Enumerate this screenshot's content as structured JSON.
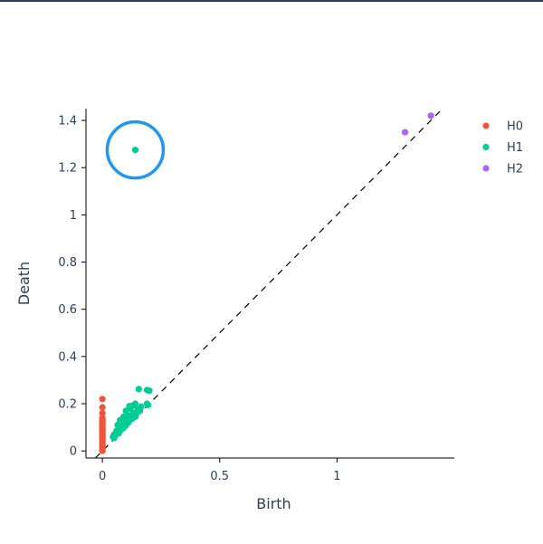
{
  "chart_data": {
    "type": "scatter",
    "xlabel": "Birth",
    "ylabel": "Death",
    "xlim": [
      -0.07,
      1.5
    ],
    "ylim": [
      -0.03,
      1.45
    ],
    "x_ticks": [
      {
        "value": 0,
        "label": "0"
      },
      {
        "value": 0.5,
        "label": "0.5"
      },
      {
        "value": 1,
        "label": "1"
      }
    ],
    "y_ticks": [
      {
        "value": 0,
        "label": "0"
      },
      {
        "value": 0.2,
        "label": "0.2"
      },
      {
        "value": 0.4,
        "label": "0.4"
      },
      {
        "value": 0.6,
        "label": "0.6"
      },
      {
        "value": 0.8,
        "label": "0.8"
      },
      {
        "value": 1,
        "label": "1"
      },
      {
        "value": 1.2,
        "label": "1.2"
      },
      {
        "value": 1.4,
        "label": "1.4"
      }
    ],
    "diagonal": {
      "style": "dashed",
      "color": "#000000",
      "from": [
        -0.03,
        -0.03
      ],
      "to": [
        1.45,
        1.45
      ]
    },
    "legend": {
      "placement": "top-right"
    },
    "highlight": {
      "label": "",
      "x": 0.14,
      "y": 1.275,
      "color": "#2196f3"
    },
    "series": [
      {
        "name": "H0",
        "color": "#ef553b",
        "points": [
          [
            0,
            0.0
          ],
          [
            0,
            0.005
          ],
          [
            0,
            0.01
          ],
          [
            0,
            0.015
          ],
          [
            0,
            0.02
          ],
          [
            0,
            0.025
          ],
          [
            0,
            0.03
          ],
          [
            0,
            0.035
          ],
          [
            0,
            0.04
          ],
          [
            0,
            0.045
          ],
          [
            0,
            0.05
          ],
          [
            0,
            0.055
          ],
          [
            0,
            0.06
          ],
          [
            0,
            0.065
          ],
          [
            0,
            0.07
          ],
          [
            0,
            0.075
          ],
          [
            0,
            0.08
          ],
          [
            0,
            0.085
          ],
          [
            0,
            0.09
          ],
          [
            0,
            0.095
          ],
          [
            0,
            0.1
          ],
          [
            0,
            0.105
          ],
          [
            0,
            0.11
          ],
          [
            0,
            0.115
          ],
          [
            0,
            0.12
          ],
          [
            0,
            0.125
          ],
          [
            0,
            0.13
          ],
          [
            0,
            0.135
          ],
          [
            0,
            0.14
          ],
          [
            0,
            0.16
          ],
          [
            0,
            0.185
          ],
          [
            0,
            0.22
          ]
        ]
      },
      {
        "name": "H1",
        "color": "#00cc96",
        "points": [
          [
            0.14,
            1.275
          ],
          [
            0.155,
            0.262
          ],
          [
            0.19,
            0.258
          ],
          [
            0.2,
            0.255
          ],
          [
            0.14,
            0.2
          ],
          [
            0.19,
            0.2
          ],
          [
            0.195,
            0.195
          ],
          [
            0.13,
            0.192
          ],
          [
            0.115,
            0.19
          ],
          [
            0.165,
            0.188
          ],
          [
            0.12,
            0.18
          ],
          [
            0.1,
            0.17
          ],
          [
            0.15,
            0.175
          ],
          [
            0.16,
            0.17
          ],
          [
            0.13,
            0.16
          ],
          [
            0.145,
            0.158
          ],
          [
            0.11,
            0.15
          ],
          [
            0.135,
            0.148
          ],
          [
            0.09,
            0.145
          ],
          [
            0.12,
            0.14
          ],
          [
            0.14,
            0.145
          ],
          [
            0.075,
            0.13
          ],
          [
            0.1,
            0.13
          ],
          [
            0.125,
            0.135
          ],
          [
            0.085,
            0.125
          ],
          [
            0.11,
            0.12
          ],
          [
            0.095,
            0.115
          ],
          [
            0.065,
            0.11
          ],
          [
            0.08,
            0.105
          ],
          [
            0.1,
            0.108
          ],
          [
            0.07,
            0.095
          ],
          [
            0.09,
            0.098
          ],
          [
            0.06,
            0.085
          ],
          [
            0.08,
            0.09
          ],
          [
            0.065,
            0.08
          ],
          [
            0.05,
            0.07
          ],
          [
            0.07,
            0.075
          ],
          [
            0.055,
            0.065
          ],
          [
            0.05,
            0.055
          ],
          [
            0.045,
            0.06
          ]
        ]
      },
      {
        "name": "H2",
        "color": "#ab63fa",
        "points": [
          [
            1.29,
            1.35
          ],
          [
            1.4,
            1.42
          ]
        ]
      }
    ]
  }
}
